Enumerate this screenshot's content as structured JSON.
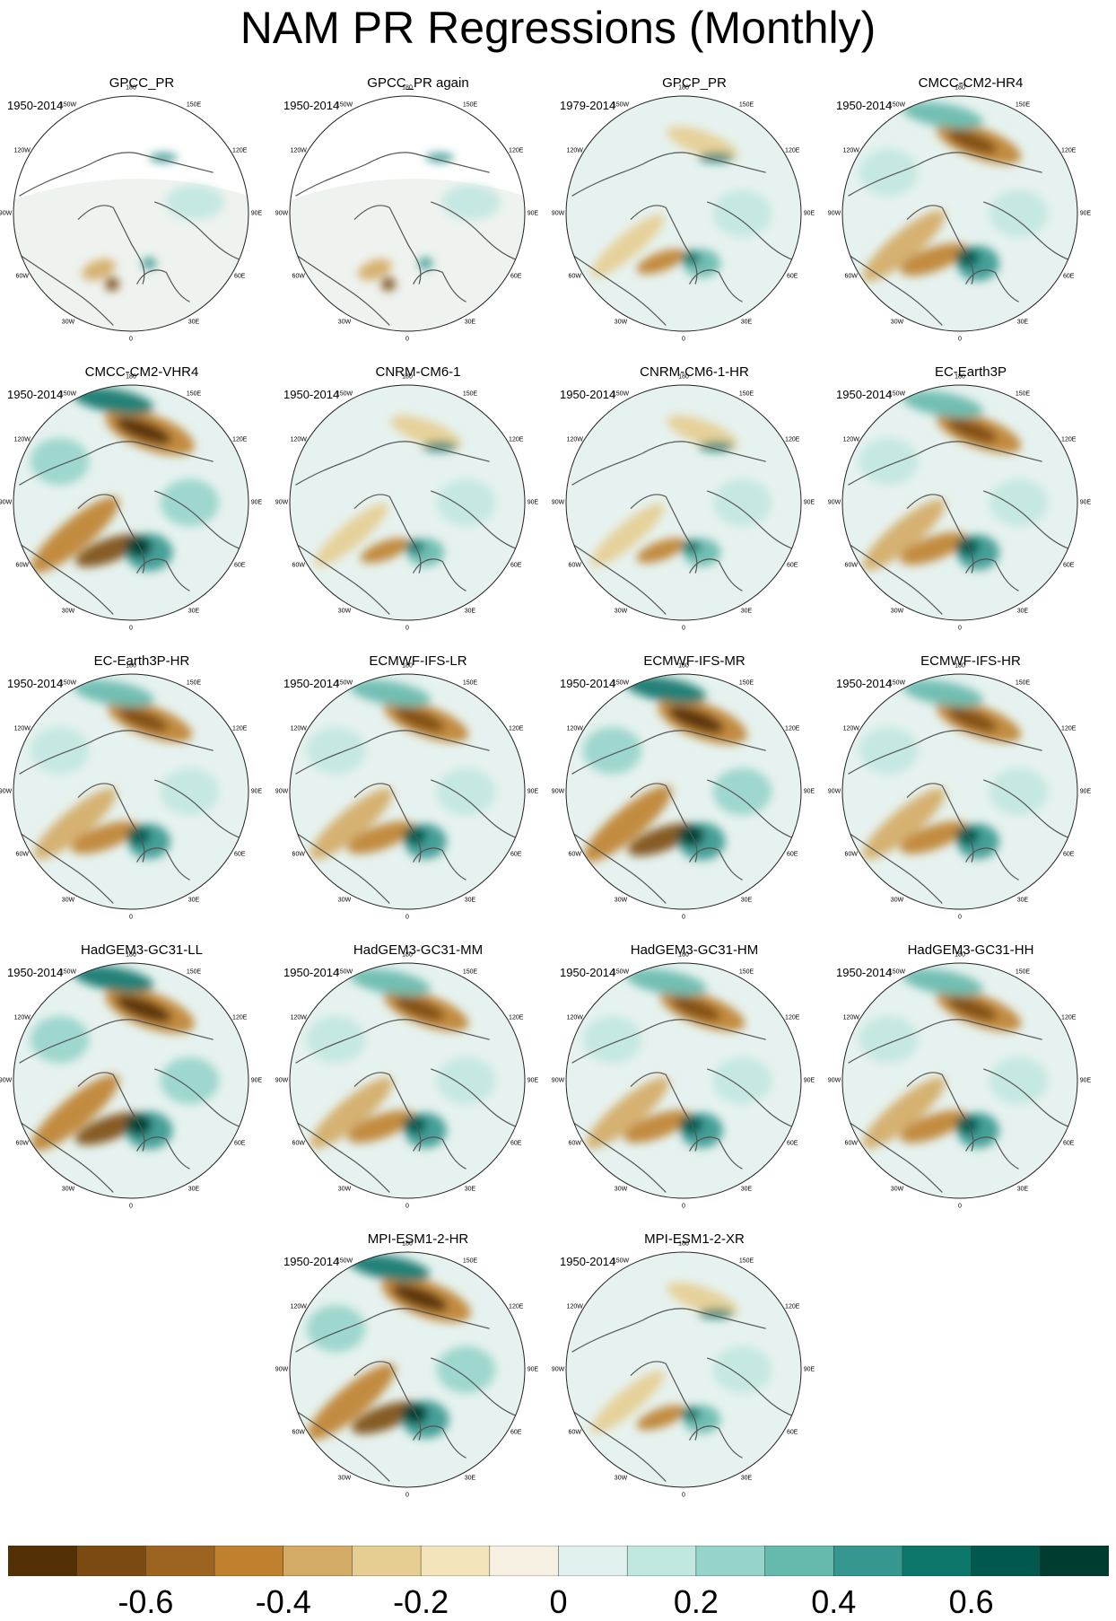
{
  "title": "NAM PR Regressions (Monthly)",
  "panels": [
    {
      "title": "GPCC_PR",
      "years": "1950-2014",
      "variant": "gpcc"
    },
    {
      "title": "GPCC_PR again",
      "years": "1950-2014",
      "variant": "gpcc"
    },
    {
      "title": "GPCP_PR",
      "years": "1979-2014",
      "variant": "weak"
    },
    {
      "title": "CMCC-CM2-HR4",
      "years": "1950-2014",
      "variant": "model"
    },
    {
      "title": "CMCC-CM2-VHR4",
      "years": "1950-2014",
      "variant": "strong"
    },
    {
      "title": "CNRM-CM6-1",
      "years": "1950-2014",
      "variant": "weak"
    },
    {
      "title": "CNRM-CM6-1-HR",
      "years": "1950-2014",
      "variant": "weak"
    },
    {
      "title": "EC-Earth3P",
      "years": "1950-2014",
      "variant": "model"
    },
    {
      "title": "EC-Earth3P-HR",
      "years": "1950-2014",
      "variant": "model"
    },
    {
      "title": "ECMWF-IFS-LR",
      "years": "1950-2014",
      "variant": "model"
    },
    {
      "title": "ECMWF-IFS-MR",
      "years": "1950-2014",
      "variant": "strong"
    },
    {
      "title": "ECMWF-IFS-HR",
      "years": "1950-2014",
      "variant": "model"
    },
    {
      "title": "HadGEM3-GC31-LL",
      "years": "1950-2014",
      "variant": "strong"
    },
    {
      "title": "HadGEM3-GC31-MM",
      "years": "1950-2014",
      "variant": "model"
    },
    {
      "title": "HadGEM3-GC31-HM",
      "years": "1950-2014",
      "variant": "model"
    },
    {
      "title": "HadGEM3-GC31-HH",
      "years": "1950-2014",
      "variant": "model"
    },
    {
      "title": "MPI-ESM1-2-HR",
      "years": "1950-2014",
      "variant": "strong"
    },
    {
      "title": "MPI-ESM1-2-XR",
      "years": "1950-2014",
      "variant": "weak"
    }
  ],
  "longitude_ticks": [
    "180",
    "150E",
    "120E",
    "90E",
    "60E",
    "30E",
    "0",
    "30W",
    "60W",
    "90W",
    "120W",
    "150W"
  ],
  "chart_data": {
    "type": "heatmap",
    "title": "NAM PR Regressions (Monthly)",
    "projection": "north polar stereographic",
    "colorbar": {
      "levels": [
        -0.7,
        -0.6,
        -0.5,
        -0.4,
        -0.3,
        -0.2,
        -0.1,
        0,
        0.1,
        0.2,
        0.3,
        0.4,
        0.5,
        0.6,
        0.7
      ],
      "tick_labels": [
        "-0.6",
        "-0.4",
        "-0.2",
        "0",
        "0.2",
        "0.4",
        "0.6"
      ],
      "colors": [
        "#543005",
        "#7b4a13",
        "#9d6321",
        "#bf812d",
        "#d4ab64",
        "#e6cd91",
        "#f4e4bc",
        "#f5f0e1",
        "#e0f0ee",
        "#c1e7e1",
        "#96d4ca",
        "#66b9ad",
        "#35978f",
        "#0d766b",
        "#01584d",
        "#003c30"
      ],
      "extends": "both",
      "position": "bottom"
    }
  }
}
